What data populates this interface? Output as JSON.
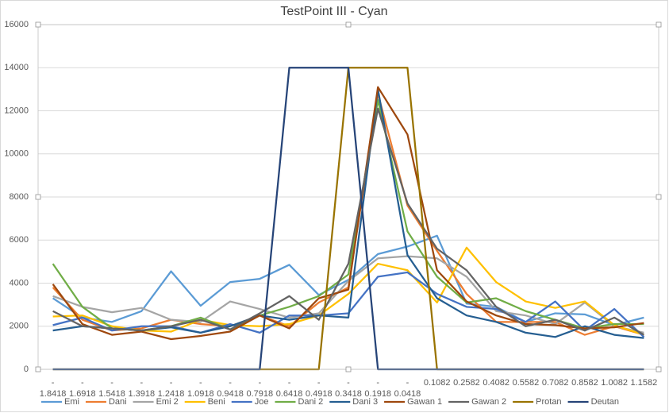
{
  "chart_data": {
    "type": "line",
    "title": "TestPoint III - Cyan",
    "categories": [
      "-1.8418",
      "-1.6918",
      "-1.5418",
      "-1.3918",
      "-1.2418",
      "-1.0918",
      "-0.9418",
      "-0.7918",
      "-0.6418",
      "-0.4918",
      "-0.3418",
      "-0.1918",
      "-0.0418",
      "0.1082",
      "0.2582",
      "0.4082",
      "0.5582",
      "0.7082",
      "0.8582",
      "1.0082",
      "1.1582"
    ],
    "ylim": [
      0,
      16000
    ],
    "yticks": [
      0,
      2000,
      4000,
      6000,
      8000,
      10000,
      12000,
      14000,
      16000
    ],
    "grid": true,
    "legend": "bottom",
    "series": [
      {
        "name": "Emi",
        "color": "#5b9bd5",
        "values": [
          3300,
          2400,
          2200,
          2700,
          4550,
          2950,
          4050,
          4200,
          4850,
          3450,
          4150,
          5350,
          5700,
          6200,
          3050,
          2900,
          2200,
          2600,
          2550,
          2050,
          2400
        ]
      },
      {
        "name": "Dani",
        "color": "#ed7d31",
        "values": [
          3800,
          2300,
          1800,
          1900,
          2300,
          2100,
          2000,
          2500,
          2000,
          3100,
          3800,
          12800,
          7600,
          5500,
          3500,
          2200,
          2200,
          2200,
          1600,
          2000,
          1600
        ]
      },
      {
        "name": "Emi 2",
        "color": "#a5a5a5",
        "values": [
          3400,
          2900,
          2650,
          2850,
          2300,
          2200,
          3150,
          2800,
          2400,
          2600,
          4100,
          5150,
          5250,
          5150,
          4300,
          2700,
          2500,
          2100,
          3100,
          2000,
          1700
        ]
      },
      {
        "name": "Beni",
        "color": "#ffc000",
        "values": [
          2450,
          2500,
          2000,
          1800,
          1750,
          2300,
          2050,
          2000,
          2100,
          2500,
          3500,
          4900,
          4600,
          3100,
          5650,
          4050,
          3150,
          2850,
          3150,
          2050,
          1600
        ]
      },
      {
        "name": "Joe",
        "color": "#4472c4",
        "values": [
          2050,
          2400,
          1800,
          2000,
          2000,
          1700,
          2100,
          1700,
          2500,
          2500,
          2600,
          4300,
          4500,
          3500,
          2900,
          2800,
          2200,
          3150,
          1800,
          2800,
          1500
        ]
      },
      {
        "name": "Dani 2",
        "color": "#70ad47",
        "values": [
          4900,
          2900,
          1900,
          1800,
          2000,
          2400,
          1850,
          2500,
          2900,
          3400,
          4400,
          12500,
          6400,
          4300,
          3100,
          3300,
          2700,
          2300,
          1900,
          2100,
          2100
        ]
      },
      {
        "name": "Dani 3",
        "color": "#255e91",
        "values": [
          1800,
          2000,
          1900,
          1800,
          1950,
          1700,
          2000,
          2500,
          2300,
          2500,
          2400,
          13000,
          5300,
          3300,
          2500,
          2200,
          1700,
          1500,
          2000,
          1600,
          1450
        ]
      },
      {
        "name": "Gawan 1",
        "color": "#9e480e",
        "values": [
          3950,
          2100,
          1600,
          1750,
          1400,
          1550,
          1750,
          2500,
          1900,
          3300,
          3700,
          13100,
          10900,
          4600,
          3150,
          2500,
          2100,
          2050,
          1900,
          1950,
          2150
        ]
      },
      {
        "name": "Gawan 2",
        "color": "#636363",
        "values": [
          2700,
          2000,
          1900,
          1800,
          2000,
          2300,
          1850,
          2600,
          3400,
          2300,
          4900,
          12100,
          7700,
          5600,
          4600,
          2900,
          2000,
          2300,
          1800,
          2400,
          1600
        ]
      },
      {
        "name": "Protan",
        "color": "#997300",
        "values": [
          0,
          0,
          0,
          0,
          0,
          0,
          0,
          0,
          0,
          0,
          14000,
          14000,
          14000,
          0,
          0,
          0,
          0,
          0,
          0,
          0,
          0
        ]
      },
      {
        "name": "Deutan",
        "color": "#264478",
        "values": [
          0,
          0,
          0,
          0,
          0,
          0,
          0,
          0,
          14000,
          14000,
          14000,
          0,
          0,
          0,
          0,
          0,
          0,
          0,
          0,
          0,
          0
        ]
      }
    ]
  }
}
